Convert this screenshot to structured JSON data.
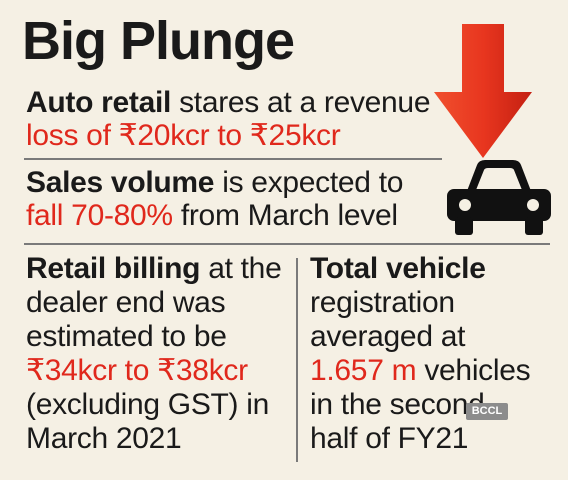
{
  "title": "Big Plunge",
  "section1": {
    "bold": "Auto retail",
    "rest": " stares at a revenue",
    "line2": "loss of ₹20kcr to ₹25kcr"
  },
  "section2": {
    "bold": "Sales volume",
    "rest": " is expected to",
    "line2_red": "fall 70-80%",
    "line2_rest": " from March level"
  },
  "left_col": {
    "bold": "Retail billing",
    "l1_rest": " at the",
    "l2": "dealer end was",
    "l3": "estimated to be",
    "l4_red": "₹34kcr to ₹38kcr",
    "l5": "(excluding GST) in",
    "l6": "March 2021"
  },
  "right_col": {
    "bold": "Total vehicle",
    "l2": "registration",
    "l3": "averaged at",
    "l4_red": "1.657 m",
    "l4_rest": " vehicles",
    "l5": "in the second",
    "l6": "half of FY21"
  },
  "watermark": "BCCL",
  "icons": {
    "arrow": "down-arrow-icon",
    "car": "car-icon"
  },
  "colors": {
    "accent_red": "#e0281c",
    "arrow_red": "#e8361f",
    "background": "#f5f0e4"
  }
}
